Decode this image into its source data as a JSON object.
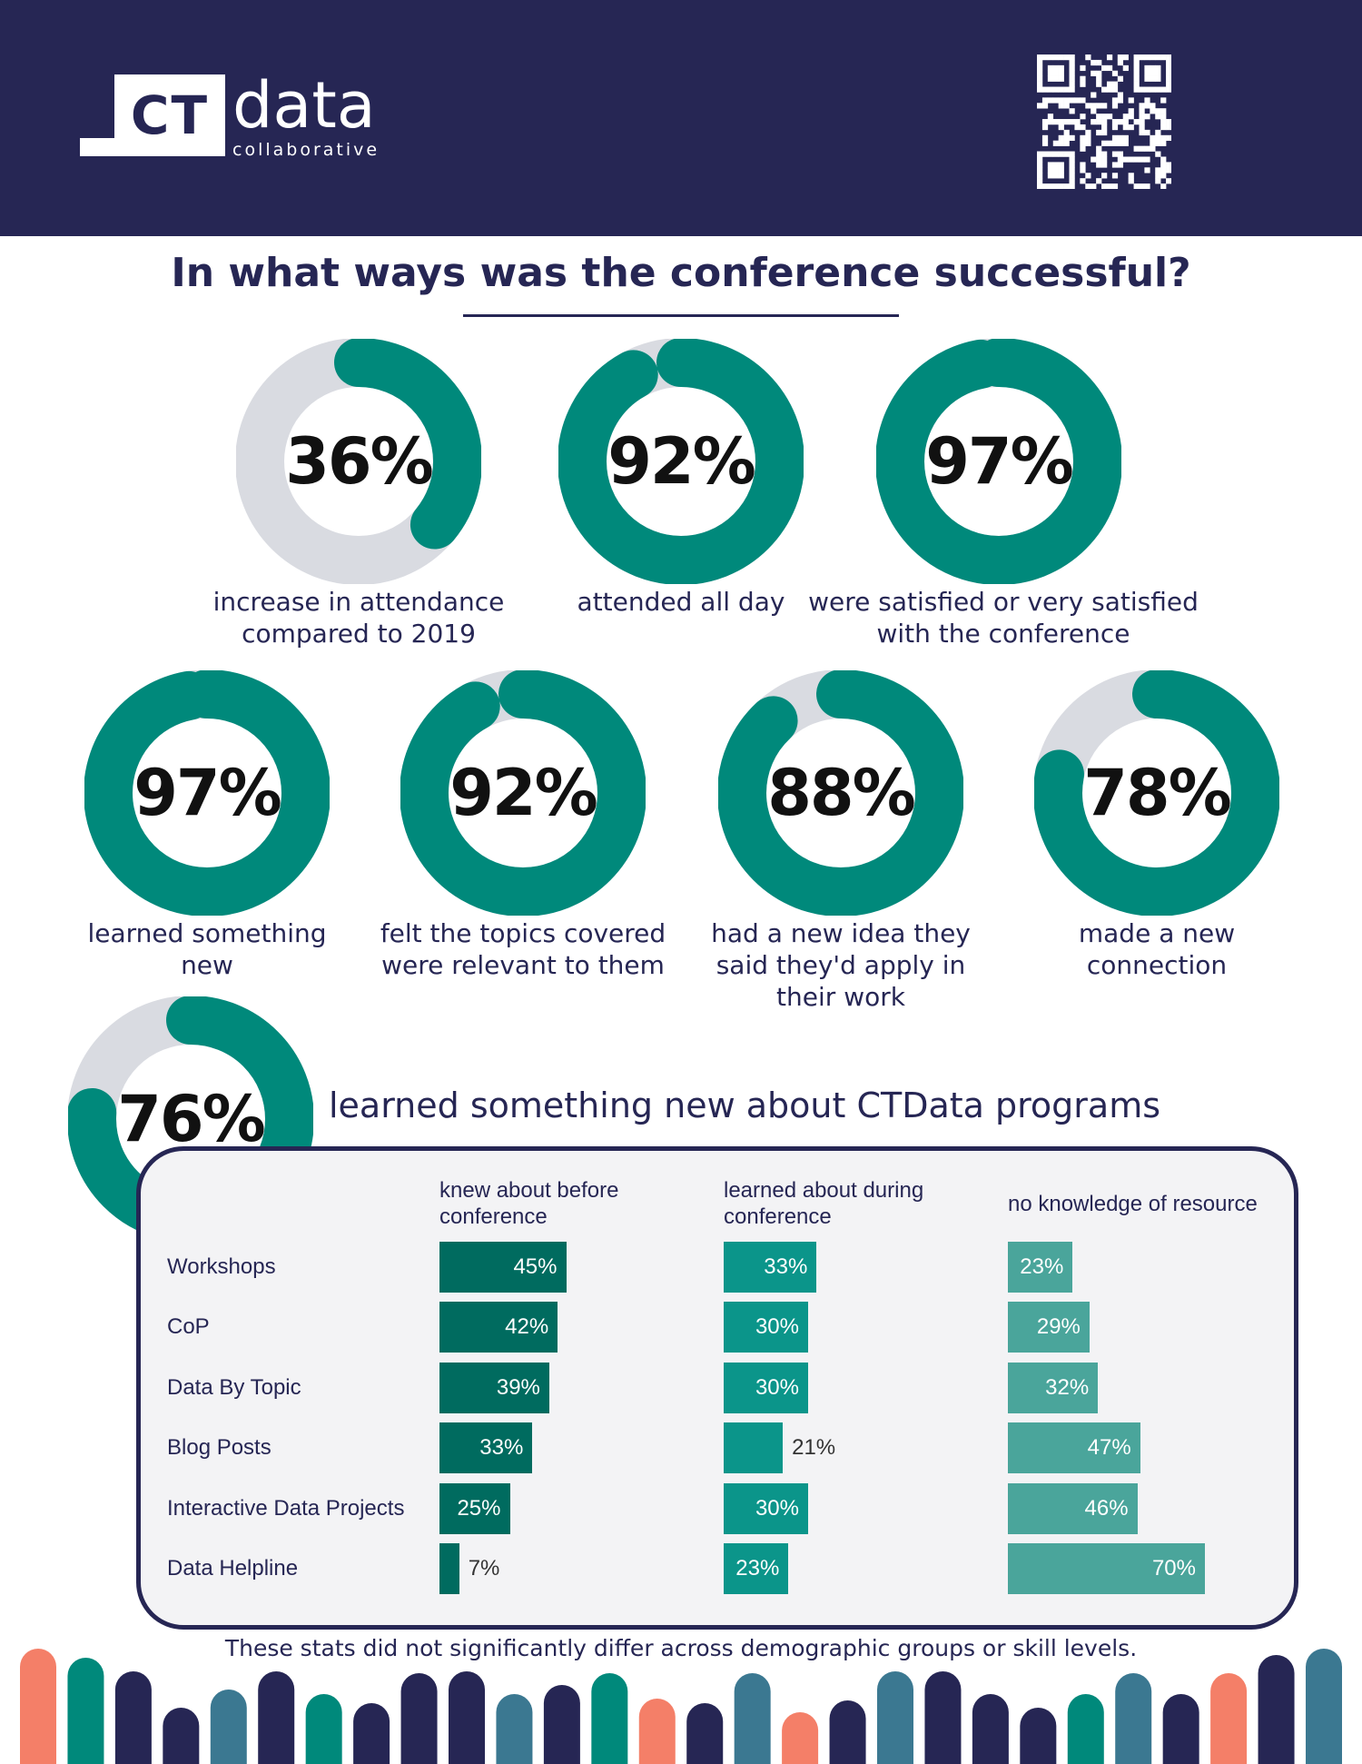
{
  "header": {
    "logo_mark": "CT",
    "logo_word": "data",
    "logo_sub": "collaborative",
    "qr_icon": "qr-code-icon"
  },
  "colors": {
    "navy": "#262654",
    "teal": "#00897b",
    "track": "#d9dbe1",
    "bar_before": "#006b5f",
    "bar_during": "#0b958a",
    "bar_none": "#4aa59b",
    "coral": "#f47f68",
    "steel": "#3b7891"
  },
  "title": "In what ways was the conference successful?",
  "stats": [
    {
      "value": 36,
      "label": "36%",
      "caption": "increase in attendance compared to 2019"
    },
    {
      "value": 92,
      "label": "92%",
      "caption": "attended all day"
    },
    {
      "value": 97,
      "label": "97%",
      "caption": "were satisfied or very satisfied with the conference"
    },
    {
      "value": 97,
      "label": "97%",
      "caption": "learned something new"
    },
    {
      "value": 92,
      "label": "92%",
      "caption": "felt the topics covered were relevant to them"
    },
    {
      "value": 88,
      "label": "88%",
      "caption": "had a new idea they said they'd apply in their work"
    },
    {
      "value": 78,
      "label": "78%",
      "caption": "made a new connection"
    },
    {
      "value": 76,
      "label": "76%",
      "caption": "learned something new about CTData programs"
    }
  ],
  "chart_data": {
    "type": "bar",
    "orientation": "horizontal",
    "categories": [
      "Workshops",
      "CoP",
      "Data By Topic",
      "Blog Posts",
      "Interactive Data Projects",
      "Data Helpline"
    ],
    "series": [
      {
        "name": "knew about before conference",
        "values": [
          45,
          42,
          39,
          33,
          25,
          7
        ],
        "labels": [
          "45%",
          "42%",
          "39%",
          "33%",
          "25%",
          "7%"
        ]
      },
      {
        "name": "learned about during conference",
        "values": [
          33,
          30,
          30,
          21,
          30,
          23
        ],
        "labels": [
          "33%",
          "30%",
          "30%",
          "21%",
          "30%",
          "23%"
        ]
      },
      {
        "name": "no knowledge of resource",
        "values": [
          23,
          29,
          32,
          47,
          46,
          70
        ],
        "labels": [
          "23%",
          "29%",
          "32%",
          "47%",
          "46%",
          "70%"
        ]
      }
    ],
    "xlim": [
      0,
      100
    ]
  },
  "footer_note": "These stats did not significantly differ across demographic groups or skill levels."
}
